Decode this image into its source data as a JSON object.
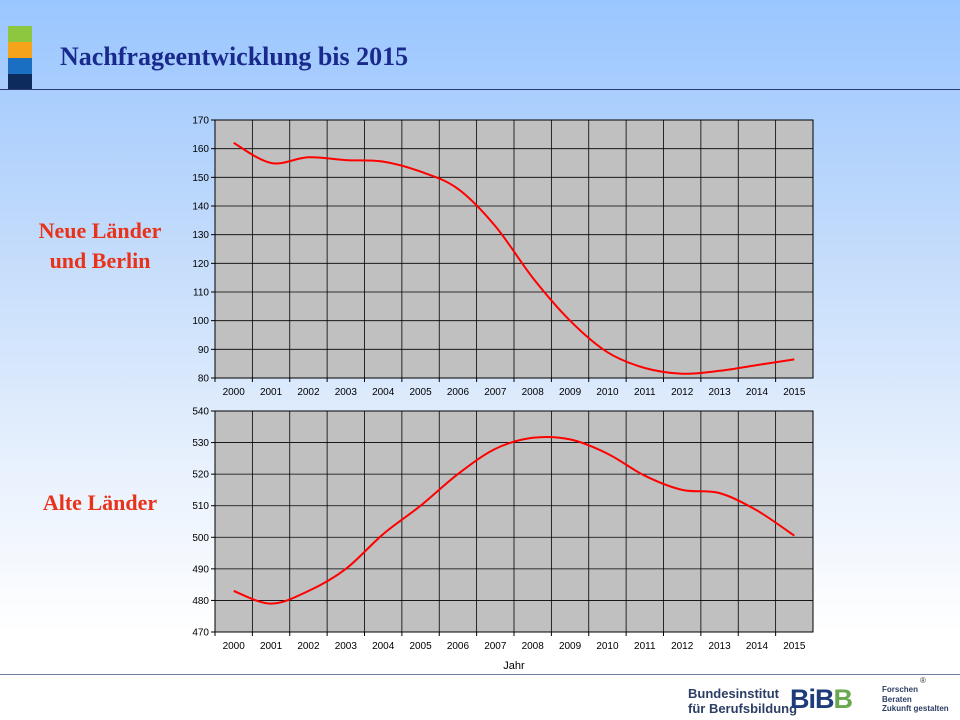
{
  "title": "Nachfrageentwicklung bis 2015",
  "accent_colors": [
    "#8dc63f",
    "#f5a31a",
    "#1b6fc2",
    "#0d2b5c"
  ],
  "labels": {
    "top": [
      "Neue Länder",
      "und Berlin"
    ],
    "bottom": "Alte Länder"
  },
  "chart_data": [
    {
      "type": "line",
      "x": [
        "2000",
        "2001",
        "2002",
        "2003",
        "2004",
        "2005",
        "2006",
        "2007",
        "2008",
        "2009",
        "2010",
        "2011",
        "2012",
        "2013",
        "2014",
        "2015"
      ],
      "series": [
        {
          "color": "#ff0000",
          "values": [
            162,
            155,
            157,
            156,
            155.5,
            152,
            146,
            133,
            115,
            100,
            89,
            83.5,
            81.5,
            82.5,
            84.5,
            86.5
          ]
        }
      ],
      "ylim": [
        80,
        170
      ],
      "yticks": [
        80,
        90,
        100,
        110,
        120,
        130,
        140,
        150,
        160,
        170
      ],
      "xlabel": "",
      "grid": true
    },
    {
      "type": "line",
      "x": [
        "2000",
        "2001",
        "2002",
        "2003",
        "2004",
        "2005",
        "2006",
        "2007",
        "2008",
        "2009",
        "2010",
        "2011",
        "2012",
        "2013",
        "2014",
        "2015"
      ],
      "series": [
        {
          "color": "#ff0000",
          "values": [
            483,
            479,
            483,
            490,
            501,
            510,
            520,
            528,
            531.5,
            531,
            526.5,
            519.5,
            515,
            514,
            508.5,
            500.5
          ]
        }
      ],
      "ylim": [
        470,
        540
      ],
      "yticks": [
        470,
        480,
        490,
        500,
        510,
        520,
        530,
        540
      ],
      "xlabel": "Jahr",
      "grid": true
    }
  ],
  "logo": {
    "line1": "Bundesinstitut",
    "line2": "für Berufsbildung",
    "mark_a": "BiB",
    "mark_b": "B",
    "slogan": [
      "Forschen",
      "Beraten",
      "Zukunft gestalten"
    ],
    "registered": "®"
  }
}
